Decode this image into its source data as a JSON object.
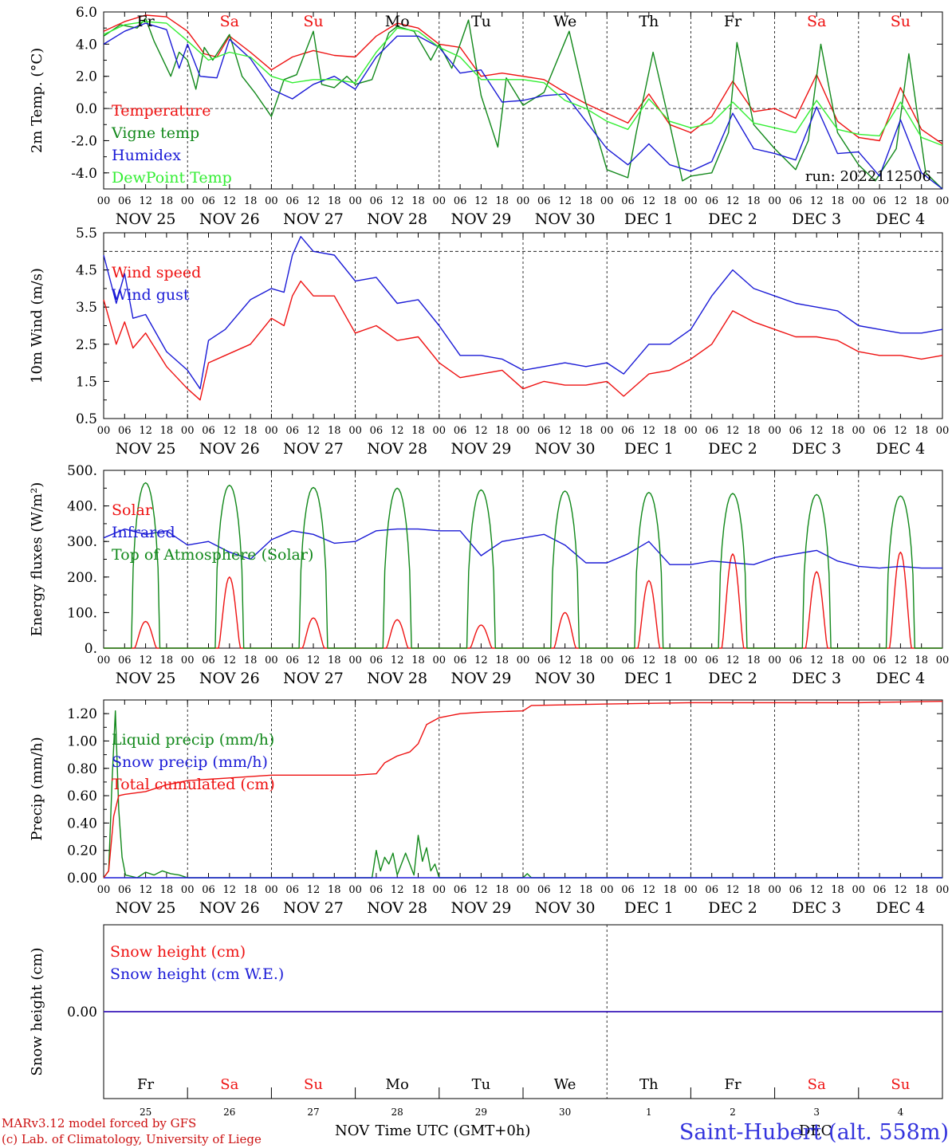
{
  "colors": {
    "red": "#ee1111",
    "green": "#11881a",
    "blue": "#1a1ad6",
    "lightgreen": "#33ee33",
    "purple": "#7a2a8a",
    "axis": "#000000",
    "footer_left": "#cc1111",
    "footer_right": "#3333dd"
  },
  "day_labels": [
    "NOV 25",
    "NOV 26",
    "NOV 27",
    "NOV 28",
    "NOV 29",
    "NOV 30",
    "DEC  1",
    "DEC  2",
    "DEC  3",
    "DEC  4"
  ],
  "hour_ticks": [
    "00",
    "06",
    "12",
    "18"
  ],
  "end_tick": "00",
  "weekdays": [
    {
      "name": "Fr",
      "color": "black"
    },
    {
      "name": "Sa",
      "color": "red"
    },
    {
      "name": "Su",
      "color": "red"
    },
    {
      "name": "Mo",
      "color": "black"
    },
    {
      "name": "Tu",
      "color": "black"
    },
    {
      "name": "We",
      "color": "black"
    },
    {
      "name": "Th",
      "color": "black"
    },
    {
      "name": "Fr",
      "color": "black"
    },
    {
      "name": "Sa",
      "color": "red"
    },
    {
      "name": "Su",
      "color": "red"
    }
  ],
  "day_numbers": [
    "25",
    "26",
    "27",
    "28",
    "29",
    "30",
    "1",
    "2",
    "3",
    "4"
  ],
  "footer": {
    "model_line": "MARv3.12 model forced by GFS",
    "copyright_line": "(c) Lab. of Climatology, University of Liege",
    "nov_label": "NOV",
    "dec_label": "DEC",
    "time_axis_label": "Time UTC (GMT+0h)",
    "station": "Saint-Hubert (alt. 558m)"
  },
  "chart_data": [
    {
      "type": "line",
      "ylabel": "2m Temp. (°C)",
      "ylim": [
        -5.0,
        6.0
      ],
      "yticks": [
        "6.0",
        "4.0",
        "2.0",
        "0.0",
        "-2.0",
        "-4.0"
      ],
      "run_label": "run: 2022112506",
      "x_unit": "days since 2022-11-25 00 UTC",
      "series": [
        {
          "name": "Temperature",
          "color": "red",
          "x": [
            0,
            0.25,
            0.5,
            0.75,
            1.0,
            1.2,
            1.35,
            1.5,
            1.75,
            2.0,
            2.25,
            2.5,
            2.75,
            3.0,
            3.25,
            3.5,
            3.75,
            4.0,
            4.25,
            4.5,
            4.75,
            5.0,
            5.25,
            5.5,
            5.75,
            6.0,
            6.25,
            6.5,
            6.75,
            7.0,
            7.25,
            7.5,
            7.75,
            8.0,
            8.25,
            8.5,
            8.75,
            9.0,
            9.25,
            9.5,
            9.75,
            10.0
          ],
          "y": [
            4.8,
            5.4,
            5.8,
            5.7,
            4.8,
            3.4,
            3.2,
            4.5,
            3.5,
            2.4,
            3.2,
            3.6,
            3.3,
            3.2,
            4.5,
            5.3,
            5.0,
            4.0,
            3.8,
            2.0,
            2.2,
            2.0,
            1.8,
            1.0,
            0.3,
            -0.3,
            -0.9,
            0.9,
            -1.0,
            -1.5,
            -0.5,
            1.7,
            -0.2,
            0.0,
            -0.6,
            2.1,
            -0.8,
            -1.8,
            -2.0,
            1.3,
            -1.3,
            -2.2
          ]
        },
        {
          "name": "Vigne temp",
          "color": "green",
          "x": [
            0,
            0.2,
            0.4,
            0.5,
            0.6,
            0.8,
            0.9,
            1.0,
            1.1,
            1.2,
            1.3,
            1.5,
            1.65,
            1.8,
            2.0,
            2.15,
            2.3,
            2.5,
            2.6,
            2.75,
            2.9,
            3.0,
            3.2,
            3.4,
            3.5,
            3.7,
            3.9,
            4.0,
            4.15,
            4.35,
            4.5,
            4.7,
            4.8,
            5.0,
            5.25,
            5.55,
            5.75,
            5.9,
            6.0,
            6.25,
            6.35,
            6.55,
            6.75,
            6.9,
            7.0,
            7.25,
            7.45,
            7.55,
            7.75,
            8.0,
            8.25,
            8.4,
            8.55,
            8.75,
            9.0,
            9.2,
            9.45,
            9.6,
            9.8,
            10.0
          ],
          "y": [
            4.5,
            5.2,
            5.0,
            5.6,
            4.2,
            2.0,
            3.5,
            3.0,
            1.2,
            3.8,
            3.0,
            4.6,
            2.0,
            1.0,
            -0.5,
            1.8,
            2.1,
            4.8,
            1.5,
            1.3,
            2.0,
            1.5,
            1.8,
            4.7,
            5.1,
            4.8,
            3.0,
            4.0,
            2.5,
            5.5,
            0.8,
            -2.4,
            1.9,
            0.2,
            1.0,
            4.8,
            0.3,
            -2.0,
            -3.8,
            -4.3,
            -1.5,
            3.5,
            -1.0,
            -4.5,
            -4.2,
            -4.0,
            -1.5,
            4.1,
            -1.0,
            -2.5,
            -3.8,
            -2.0,
            4.0,
            -1.5,
            -3.5,
            -4.5,
            -2.5,
            3.4,
            -4.0,
            -5.3
          ]
        },
        {
          "name": "Humidex",
          "color": "blue",
          "x": [
            0,
            0.25,
            0.5,
            0.75,
            0.9,
            1.0,
            1.15,
            1.35,
            1.5,
            1.75,
            2.0,
            2.25,
            2.5,
            2.75,
            3.0,
            3.25,
            3.5,
            3.75,
            4.0,
            4.25,
            4.5,
            4.75,
            5.0,
            5.25,
            5.5,
            5.75,
            6.0,
            6.25,
            6.5,
            6.75,
            7.0,
            7.25,
            7.5,
            7.75,
            8.0,
            8.25,
            8.5,
            8.75,
            9.0,
            9.25,
            9.5,
            9.75,
            10.0
          ],
          "y": [
            4.0,
            4.8,
            5.3,
            4.9,
            2.5,
            4.0,
            2.0,
            1.9,
            4.3,
            3.1,
            1.2,
            0.6,
            1.5,
            2.0,
            1.2,
            3.2,
            4.5,
            4.5,
            3.8,
            2.2,
            2.4,
            0.4,
            0.5,
            0.8,
            0.9,
            -0.8,
            -2.5,
            -3.5,
            -2.2,
            -3.5,
            -3.9,
            -3.3,
            -0.3,
            -2.5,
            -2.8,
            -3.2,
            0.1,
            -2.8,
            -2.7,
            -4.2,
            -0.7,
            -4.0,
            -5.1
          ]
        },
        {
          "name": "DewPoint Temp",
          "color": "lightgreen",
          "x": [
            0,
            0.25,
            0.5,
            0.75,
            1.0,
            1.25,
            1.5,
            1.75,
            2.0,
            2.25,
            2.5,
            2.75,
            3.0,
            3.25,
            3.5,
            3.75,
            4.0,
            4.25,
            4.5,
            4.75,
            5.0,
            5.25,
            5.5,
            5.75,
            6.0,
            6.25,
            6.5,
            6.75,
            7.0,
            7.25,
            7.5,
            7.75,
            8.0,
            8.25,
            8.5,
            8.75,
            9.0,
            9.25,
            9.5,
            9.75,
            10.0
          ],
          "y": [
            4.6,
            5.2,
            5.4,
            5.3,
            4.2,
            3.0,
            3.5,
            3.2,
            2.0,
            1.6,
            1.8,
            1.8,
            1.6,
            3.5,
            5.0,
            4.8,
            3.8,
            3.2,
            1.8,
            1.8,
            1.8,
            1.6,
            0.5,
            0.0,
            -0.8,
            -1.3,
            0.6,
            -0.8,
            -1.2,
            -0.9,
            0.4,
            -0.9,
            -1.2,
            -1.5,
            0.5,
            -1.3,
            -1.6,
            -1.7,
            0.4,
            -1.8,
            -2.3
          ]
        }
      ]
    },
    {
      "type": "line",
      "ylabel": "10m Wind (m/s)",
      "ylim": [
        0.5,
        5.5
      ],
      "yticks": [
        "5.5",
        "4.5",
        "3.5",
        "2.5",
        "1.5",
        "0.5"
      ],
      "x_unit": "days since 2022-11-25 00 UTC",
      "series": [
        {
          "name": "Wind speed",
          "color": "red",
          "x": [
            0,
            0.15,
            0.25,
            0.35,
            0.5,
            0.75,
            1.0,
            1.15,
            1.25,
            1.45,
            1.75,
            2.0,
            2.15,
            2.25,
            2.35,
            2.5,
            2.75,
            3.0,
            3.25,
            3.5,
            3.75,
            4.0,
            4.25,
            4.5,
            4.75,
            5.0,
            5.25,
            5.5,
            5.75,
            6.0,
            6.2,
            6.5,
            6.75,
            7.0,
            7.25,
            7.5,
            7.75,
            8.0,
            8.25,
            8.5,
            8.75,
            9.0,
            9.25,
            9.5,
            9.75,
            10.0
          ],
          "y": [
            3.7,
            2.5,
            3.1,
            2.4,
            2.8,
            1.9,
            1.3,
            1.0,
            2.0,
            2.2,
            2.5,
            3.2,
            3.0,
            3.8,
            4.2,
            3.8,
            3.8,
            2.8,
            3.0,
            2.6,
            2.7,
            2.0,
            1.6,
            1.7,
            1.8,
            1.3,
            1.5,
            1.4,
            1.4,
            1.5,
            1.1,
            1.7,
            1.8,
            2.1,
            2.5,
            3.4,
            3.1,
            2.9,
            2.7,
            2.7,
            2.6,
            2.3,
            2.2,
            2.2,
            2.1,
            2.2
          ]
        },
        {
          "name": "Wind gust",
          "color": "blue",
          "x": [
            0,
            0.15,
            0.25,
            0.35,
            0.5,
            0.75,
            1.0,
            1.15,
            1.25,
            1.45,
            1.75,
            2.0,
            2.15,
            2.25,
            2.35,
            2.5,
            2.75,
            3.0,
            3.25,
            3.5,
            3.75,
            4.0,
            4.25,
            4.5,
            4.75,
            5.0,
            5.25,
            5.5,
            5.75,
            6.0,
            6.2,
            6.5,
            6.75,
            7.0,
            7.25,
            7.5,
            7.75,
            8.0,
            8.25,
            8.5,
            8.75,
            9.0,
            9.25,
            9.5,
            9.75,
            10.0
          ],
          "y": [
            4.9,
            3.6,
            4.4,
            3.2,
            3.3,
            2.3,
            1.8,
            1.3,
            2.6,
            2.9,
            3.7,
            4.0,
            3.9,
            4.9,
            5.4,
            5.0,
            4.9,
            4.2,
            4.3,
            3.6,
            3.7,
            3.0,
            2.2,
            2.2,
            2.1,
            1.8,
            1.9,
            2.0,
            1.9,
            2.0,
            1.7,
            2.5,
            2.5,
            2.9,
            3.8,
            4.5,
            4.0,
            3.8,
            3.6,
            3.5,
            3.4,
            3.0,
            2.9,
            2.8,
            2.8,
            2.9
          ]
        }
      ]
    },
    {
      "type": "line",
      "ylabel": "Energy fluxes (W/m²)",
      "ylim": [
        0,
        500
      ],
      "yticks": [
        "500.",
        "400.",
        "300.",
        "200.",
        "100.",
        "0."
      ],
      "x_unit": "days since 2022-11-25 00 UTC",
      "daily_peak_hour": 12,
      "series": [
        {
          "name": "Solar",
          "color": "red",
          "type": "daily_peaks",
          "peaks": [
            75,
            200,
            85,
            80,
            65,
            100,
            190,
            265,
            215,
            270
          ]
        },
        {
          "name": "Infrared",
          "color": "blue",
          "x": [
            0,
            0.25,
            0.5,
            0.75,
            1.0,
            1.25,
            1.5,
            1.75,
            2.0,
            2.25,
            2.5,
            2.75,
            3.0,
            3.25,
            3.5,
            3.75,
            4.0,
            4.25,
            4.5,
            4.75,
            5.0,
            5.25,
            5.5,
            5.75,
            6.0,
            6.25,
            6.5,
            6.75,
            7.0,
            7.25,
            7.5,
            7.75,
            8.0,
            8.25,
            8.5,
            8.75,
            9.0,
            9.25,
            9.5,
            9.75,
            10.0
          ],
          "y": [
            310,
            335,
            320,
            330,
            290,
            300,
            270,
            250,
            305,
            330,
            320,
            295,
            300,
            330,
            335,
            335,
            330,
            330,
            260,
            300,
            310,
            320,
            290,
            240,
            240,
            265,
            300,
            235,
            235,
            245,
            240,
            235,
            255,
            265,
            275,
            245,
            230,
            225,
            230,
            225,
            225
          ]
        },
        {
          "name": "Top of Atmosphere (Solar)",
          "color": "green",
          "type": "daily_peaks",
          "peaks": [
            465,
            458,
            452,
            450,
            445,
            442,
            438,
            435,
            432,
            428
          ]
        }
      ]
    },
    {
      "type": "line",
      "ylabel": "Precip (mm/h)",
      "ylim": [
        0,
        1.3
      ],
      "yticks": [
        "1.20",
        "1.00",
        "0.80",
        "0.60",
        "0.40",
        "0.20",
        "0.00"
      ],
      "x_unit": "days since 2022-11-25 00 UTC",
      "series": [
        {
          "name": "Liquid precip (mm/h)",
          "color": "green",
          "x": [
            0,
            0.06,
            0.1,
            0.14,
            0.18,
            0.22,
            0.26,
            0.4,
            0.5,
            0.6,
            0.7,
            0.8,
            0.9,
            1.0,
            3.2,
            3.25,
            3.3,
            3.35,
            3.4,
            3.45,
            3.5,
            3.55,
            3.6,
            3.7,
            3.75,
            3.8,
            3.85,
            3.9,
            3.95,
            4.0,
            5.0,
            5.05,
            5.1,
            10.0
          ],
          "y": [
            0,
            0.05,
            0.7,
            1.22,
            0.5,
            0.15,
            0.02,
            0.0,
            0.04,
            0.02,
            0.05,
            0.03,
            0.02,
            0.0,
            0.0,
            0.2,
            0.05,
            0.15,
            0.1,
            0.18,
            0.02,
            0.1,
            0.18,
            0.02,
            0.31,
            0.12,
            0.22,
            0.05,
            0.1,
            0.0,
            0.0,
            0.03,
            0.0,
            0.0
          ]
        },
        {
          "name": "Snow precip (mm/h)",
          "color": "blue",
          "x": [
            0,
            10
          ],
          "y": [
            0,
            0
          ]
        },
        {
          "name": "Total cumulated (cm)",
          "color": "red",
          "x": [
            0,
            0.06,
            0.12,
            0.18,
            0.25,
            0.5,
            0.75,
            1.0,
            1.25,
            1.5,
            1.75,
            2.0,
            2.5,
            3.0,
            3.25,
            3.35,
            3.5,
            3.65,
            3.75,
            3.85,
            4.0,
            4.25,
            4.5,
            5.0,
            5.1,
            6.0,
            7.0,
            8.0,
            9.0,
            10.0
          ],
          "y": [
            0,
            0.05,
            0.45,
            0.6,
            0.61,
            0.63,
            0.68,
            0.71,
            0.72,
            0.73,
            0.74,
            0.75,
            0.75,
            0.75,
            0.76,
            0.84,
            0.89,
            0.92,
            0.98,
            1.12,
            1.17,
            1.2,
            1.21,
            1.22,
            1.26,
            1.27,
            1.28,
            1.28,
            1.28,
            1.29
          ]
        }
      ]
    },
    {
      "type": "line",
      "ylabel": "Snow height (cm)",
      "ylim": [
        -1,
        1
      ],
      "yticks": [
        "0.00"
      ],
      "x_unit": "days since 2022-11-25 00 UTC",
      "series": [
        {
          "name": "Snow height (cm)",
          "color": "red",
          "x": [
            0,
            10
          ],
          "y": [
            0,
            0
          ]
        },
        {
          "name": "Snow height (cm W.E.)",
          "color": "blue",
          "x": [
            0,
            10
          ],
          "y": [
            0,
            0
          ]
        }
      ]
    }
  ]
}
